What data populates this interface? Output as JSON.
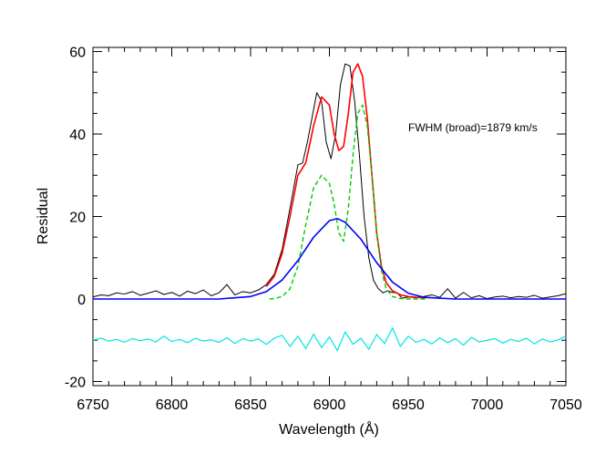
{
  "chart_data": {
    "type": "line",
    "title": "",
    "xlabel": "Wavelength (Å)",
    "ylabel": "Residual",
    "xlim": [
      6750,
      7050
    ],
    "ylim": [
      -21,
      61
    ],
    "xticks": [
      6750,
      6800,
      6850,
      6900,
      6950,
      7000,
      7050
    ],
    "yticks": [
      -20,
      0,
      20,
      40,
      60
    ],
    "xtick_labels": [
      "6750",
      "6800",
      "6850",
      "6900",
      "6950",
      "7000",
      "7050"
    ],
    "ytick_labels": [
      "-20",
      "0",
      "20",
      "40",
      "60"
    ],
    "annotation": "FWHM (broad)=1879 km/s",
    "grid": false,
    "legend": "none",
    "series": [
      {
        "color": "#000000",
        "style": "solid",
        "x": [
          6750,
          6755,
          6760,
          6765,
          6770,
          6775,
          6780,
          6785,
          6790,
          6795,
          6800,
          6805,
          6810,
          6815,
          6820,
          6825,
          6830,
          6835,
          6840,
          6845,
          6850,
          6855,
          6860,
          6865,
          6870,
          6875,
          6880,
          6883,
          6886,
          6889,
          6892,
          6895,
          6898,
          6901,
          6904,
          6907,
          6910,
          6913,
          6916,
          6919,
          6922,
          6925,
          6928,
          6931,
          6934,
          6937,
          6940,
          6943,
          6946,
          6950,
          6955,
          6960,
          6965,
          6970,
          6975,
          6980,
          6985,
          6990,
          6995,
          7000,
          7005,
          7010,
          7015,
          7020,
          7025,
          7030,
          7035,
          7040,
          7045,
          7050
        ],
        "y": [
          0.5,
          1.0,
          0.8,
          1.5,
          1.2,
          1.8,
          0.9,
          1.4,
          2.0,
          1.1,
          1.6,
          0.7,
          1.9,
          1.3,
          2.2,
          0.8,
          1.5,
          3.5,
          1.0,
          1.8,
          1.5,
          2.2,
          3.5,
          6.0,
          12.0,
          22.0,
          32.5,
          33.0,
          38.0,
          44.0,
          50.0,
          48.0,
          38.0,
          34.0,
          40.0,
          52.0,
          57.0,
          56.5,
          48.0,
          35.0,
          20.0,
          10.0,
          4.5,
          2.5,
          1.5,
          2.0,
          1.6,
          1.5,
          0.2,
          0.5,
          0.3,
          0.6,
          1.0,
          0.4,
          2.5,
          0.2,
          1.6,
          0.3,
          0.8,
          0.1,
          0.5,
          0.7,
          0.3,
          0.6,
          0.4,
          0.9,
          0.2,
          0.5,
          0.8,
          1.3
        ]
      },
      {
        "color": "#ff0000",
        "style": "solid",
        "x": [
          6860,
          6865,
          6870,
          6875,
          6880,
          6885,
          6890,
          6895,
          6900,
          6903,
          6906,
          6909,
          6912,
          6915,
          6918,
          6921,
          6924,
          6927,
          6930,
          6933,
          6936,
          6940,
          6945,
          6950,
          6955,
          6960
        ],
        "y": [
          3.0,
          5.5,
          11.0,
          20.0,
          30.0,
          33.0,
          42.0,
          49.0,
          47.0,
          40.0,
          36.0,
          37.0,
          45.0,
          55.0,
          57.0,
          54.0,
          44.0,
          30.0,
          16.0,
          8.0,
          4.0,
          2.0,
          1.0,
          0.6,
          0.4,
          0.3
        ]
      },
      {
        "color": "#00cc00",
        "style": "dashed",
        "x": [
          6862,
          6865,
          6870,
          6875,
          6880,
          6885,
          6890,
          6895,
          6900,
          6903,
          6906,
          6909,
          6912,
          6915,
          6918,
          6921,
          6924,
          6927,
          6930,
          6933,
          6936,
          6940,
          6945,
          6950,
          6955,
          6962
        ],
        "y": [
          0.0,
          0.1,
          0.6,
          2.5,
          8.0,
          18.0,
          27.0,
          30.0,
          28.0,
          23.0,
          16.0,
          14.0,
          22.0,
          35.0,
          45.0,
          47.0,
          42.0,
          30.0,
          16.0,
          7.0,
          2.5,
          0.6,
          0.1,
          0.0,
          0.0,
          0.0
        ]
      },
      {
        "color": "#0000ff",
        "style": "solid",
        "x": [
          6750,
          6800,
          6830,
          6850,
          6860,
          6870,
          6880,
          6890,
          6900,
          6905,
          6910,
          6920,
          6930,
          6940,
          6950,
          6960,
          6980,
          7000,
          7050
        ],
        "y": [
          0.0,
          0.0,
          0.0,
          0.6,
          1.8,
          4.6,
          9.3,
          15.0,
          19.0,
          19.5,
          18.6,
          14.5,
          8.8,
          4.1,
          1.4,
          0.4,
          0.0,
          0.0,
          0.0
        ]
      },
      {
        "color": "#00e5e5",
        "style": "solid",
        "x": [
          6750,
          6755,
          6760,
          6765,
          6770,
          6775,
          6780,
          6785,
          6790,
          6795,
          6800,
          6805,
          6810,
          6815,
          6820,
          6825,
          6830,
          6835,
          6840,
          6845,
          6850,
          6855,
          6860,
          6865,
          6870,
          6875,
          6880,
          6885,
          6890,
          6895,
          6900,
          6905,
          6910,
          6915,
          6920,
          6925,
          6930,
          6935,
          6940,
          6945,
          6950,
          6955,
          6960,
          6965,
          6970,
          6975,
          6980,
          6985,
          6990,
          6995,
          7000,
          7005,
          7010,
          7015,
          7020,
          7025,
          7030,
          7035,
          7040,
          7045,
          7050
        ],
        "y": [
          -10.0,
          -9.5,
          -10.2,
          -9.8,
          -10.5,
          -9.6,
          -10.1,
          -9.7,
          -10.4,
          -9.0,
          -10.3,
          -9.8,
          -10.6,
          -9.5,
          -10.2,
          -9.9,
          -10.5,
          -9.4,
          -10.8,
          -9.6,
          -10.2,
          -9.7,
          -11.0,
          -9.5,
          -8.8,
          -11.5,
          -9.0,
          -12.0,
          -8.5,
          -11.8,
          -9.2,
          -12.5,
          -8.0,
          -11.0,
          -9.5,
          -12.2,
          -8.6,
          -10.8,
          -7.0,
          -11.5,
          -9.0,
          -10.5,
          -9.8,
          -10.9,
          -9.4,
          -10.6,
          -9.6,
          -11.2,
          -9.3,
          -10.4,
          -10.0,
          -9.6,
          -10.7,
          -9.8,
          -10.3,
          -9.5,
          -10.9,
          -9.7,
          -10.4,
          -9.9,
          -9.0
        ]
      }
    ]
  }
}
